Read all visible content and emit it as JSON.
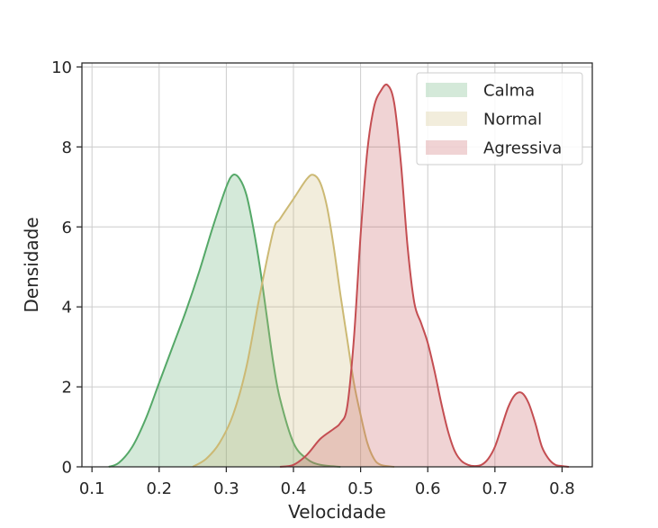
{
  "chart_data": {
    "type": "area",
    "title": "",
    "xlabel": "Velocidade",
    "ylabel": "Densidade",
    "xlim": [
      0.085,
      0.845
    ],
    "ylim": [
      0,
      10.1
    ],
    "xticks": [
      0.1,
      0.2,
      0.3,
      0.4,
      0.5,
      0.6,
      0.7,
      0.8
    ],
    "xtick_labels": [
      "0.1",
      "0.2",
      "0.3",
      "0.4",
      "0.5",
      "0.6",
      "0.7",
      "0.8"
    ],
    "yticks": [
      0,
      2,
      4,
      6,
      8,
      10
    ],
    "ytick_labels": [
      "0",
      "2",
      "4",
      "6",
      "8",
      "10"
    ],
    "grid": true,
    "legend_position": "top-right",
    "series": [
      {
        "name": "Calma",
        "color": "#55a868",
        "x": [
          0.125,
          0.14,
          0.16,
          0.18,
          0.2,
          0.22,
          0.24,
          0.26,
          0.28,
          0.3,
          0.31,
          0.32,
          0.33,
          0.34,
          0.35,
          0.36,
          0.37,
          0.38,
          0.4,
          0.42,
          0.44,
          0.47
        ],
        "y": [
          0.0,
          0.1,
          0.5,
          1.2,
          2.1,
          3.0,
          3.9,
          4.9,
          6.0,
          7.0,
          7.3,
          7.2,
          6.8,
          6.0,
          5.0,
          3.8,
          2.6,
          1.7,
          0.6,
          0.2,
          0.05,
          0.0
        ]
      },
      {
        "name": "Normal",
        "color": "#ccb974",
        "x": [
          0.25,
          0.27,
          0.29,
          0.31,
          0.33,
          0.35,
          0.37,
          0.38,
          0.4,
          0.42,
          0.43,
          0.44,
          0.45,
          0.46,
          0.47,
          0.48,
          0.49,
          0.5,
          0.51,
          0.52,
          0.53,
          0.55
        ],
        "y": [
          0.0,
          0.2,
          0.6,
          1.3,
          2.5,
          4.3,
          5.9,
          6.2,
          6.7,
          7.2,
          7.3,
          7.1,
          6.5,
          5.5,
          4.3,
          3.2,
          2.1,
          1.3,
          0.6,
          0.2,
          0.05,
          0.0
        ]
      },
      {
        "name": "Agressiva",
        "color": "#c44e52",
        "x": [
          0.38,
          0.4,
          0.42,
          0.44,
          0.46,
          0.47,
          0.48,
          0.49,
          0.5,
          0.51,
          0.52,
          0.53,
          0.54,
          0.55,
          0.56,
          0.57,
          0.58,
          0.59,
          0.6,
          0.61,
          0.62,
          0.63,
          0.64,
          0.65,
          0.66,
          0.67,
          0.68,
          0.69,
          0.7,
          0.71,
          0.72,
          0.73,
          0.74,
          0.75,
          0.76,
          0.77,
          0.78,
          0.79,
          0.8,
          0.81
        ],
        "y": [
          0.0,
          0.05,
          0.3,
          0.7,
          0.95,
          1.1,
          1.5,
          3.2,
          5.8,
          7.9,
          9.0,
          9.4,
          9.55,
          9.1,
          7.6,
          5.5,
          4.1,
          3.6,
          3.1,
          2.4,
          1.6,
          0.9,
          0.4,
          0.15,
          0.05,
          0.02,
          0.05,
          0.2,
          0.5,
          1.0,
          1.5,
          1.8,
          1.85,
          1.6,
          1.1,
          0.5,
          0.2,
          0.05,
          0.02,
          0.0
        ]
      }
    ]
  }
}
